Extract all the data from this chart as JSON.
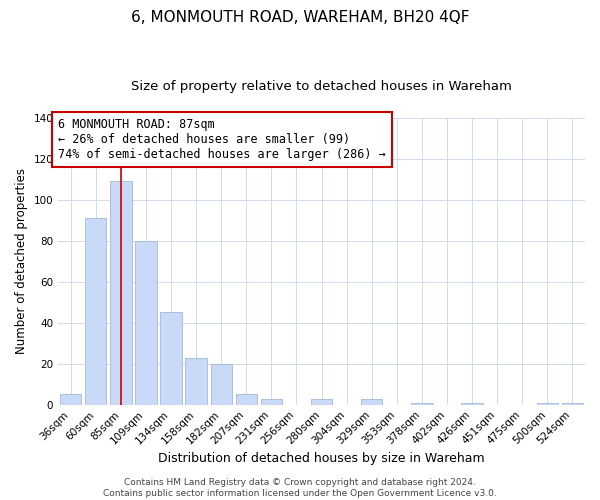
{
  "title": "6, MONMOUTH ROAD, WAREHAM, BH20 4QF",
  "subtitle": "Size of property relative to detached houses in Wareham",
  "xlabel": "Distribution of detached houses by size in Wareham",
  "ylabel": "Number of detached properties",
  "bar_labels": [
    "36sqm",
    "60sqm",
    "85sqm",
    "109sqm",
    "134sqm",
    "158sqm",
    "182sqm",
    "207sqm",
    "231sqm",
    "256sqm",
    "280sqm",
    "304sqm",
    "329sqm",
    "353sqm",
    "378sqm",
    "402sqm",
    "426sqm",
    "451sqm",
    "475sqm",
    "500sqm",
    "524sqm"
  ],
  "bar_values": [
    5,
    91,
    109,
    80,
    45,
    23,
    20,
    5,
    3,
    0,
    3,
    0,
    3,
    0,
    1,
    0,
    1,
    0,
    0,
    1,
    1
  ],
  "bar_color": "#c9daf8",
  "bar_edge_color": "#a4b8d4",
  "vline_x_index": 2,
  "vline_color": "#cc0000",
  "annotation_title": "6 MONMOUTH ROAD: 87sqm",
  "annotation_line1": "← 26% of detached houses are smaller (99)",
  "annotation_line2": "74% of semi-detached houses are larger (286) →",
  "annotation_box_color": "#ffffff",
  "annotation_box_edge": "#cc0000",
  "ylim": [
    0,
    140
  ],
  "yticks": [
    0,
    20,
    40,
    60,
    80,
    100,
    120,
    140
  ],
  "footer_line1": "Contains HM Land Registry data © Crown copyright and database right 2024.",
  "footer_line2": "Contains public sector information licensed under the Open Government Licence v3.0.",
  "background_color": "#ffffff",
  "grid_color": "#d0dcea",
  "title_fontsize": 11,
  "subtitle_fontsize": 9.5,
  "ylabel_fontsize": 8.5,
  "xlabel_fontsize": 9,
  "tick_fontsize": 7.5,
  "annotation_fontsize": 8.5,
  "footer_fontsize": 6.5
}
